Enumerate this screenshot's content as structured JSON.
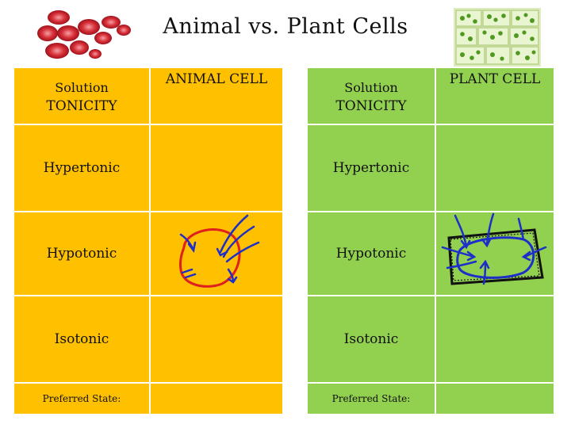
{
  "title": "Animal vs. Plant Cells",
  "animal": {
    "headers": {
      "solution": "Solution",
      "tonicity": "TONICITY",
      "cell_column": "ANIMAL CELL"
    },
    "rows": [
      {
        "label": "Hypertonic",
        "drawing": ""
      },
      {
        "label": "Hypotonic",
        "drawing": "swollen-animal-cell-sketch"
      },
      {
        "label": "Isotonic",
        "drawing": ""
      },
      {
        "label": "Preferred State:",
        "drawing": ""
      }
    ],
    "color": "#ffc000"
  },
  "plant": {
    "headers": {
      "solution": "Solution",
      "tonicity": "TONICITY",
      "cell_column": "PLANT CELL"
    },
    "rows": [
      {
        "label": "Hypertonic",
        "drawing": ""
      },
      {
        "label": "Hypotonic",
        "drawing": "turgid-plant-cell-sketch"
      },
      {
        "label": "Isotonic",
        "drawing": ""
      },
      {
        "label": "Preferred State:",
        "drawing": ""
      }
    ],
    "color": "#92d050"
  }
}
